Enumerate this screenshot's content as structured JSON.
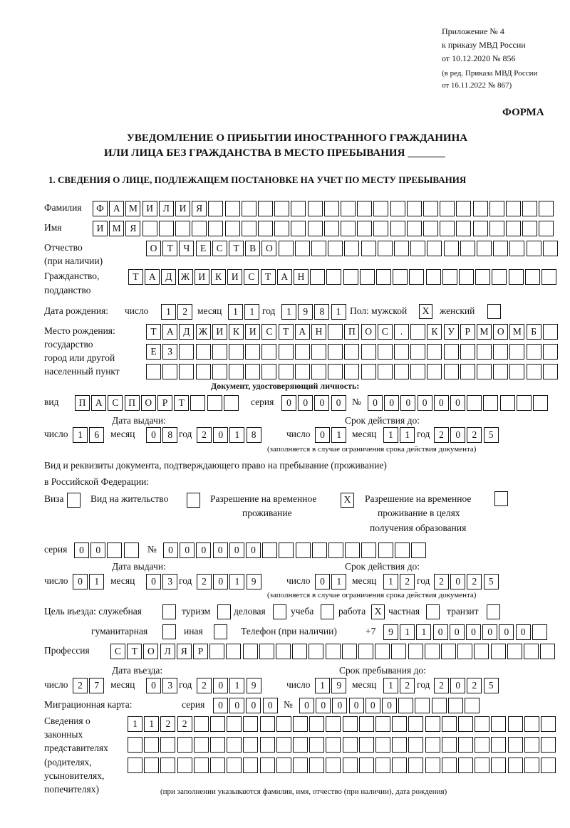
{
  "header": {
    "appendix_line1": "Приложение № 4",
    "appendix_line2": "к приказу МВД России",
    "appendix_line3": "от 10.12.2020 № 856",
    "appendix_line4": "(в ред. Приказа МВД России",
    "appendix_line5": "от 16.11.2022 № 867)",
    "form_label": "ФОРМА",
    "title_line1": "УВЕДОМЛЕНИЕ О ПРИБЫТИИ ИНОСТРАННОГО ГРАЖДАНИНА",
    "title_line2": "ИЛИ ЛИЦА БЕЗ ГРАЖДАНСТВА В МЕСТО ПРЕБЫВАНИЯ",
    "title_blank": "_______"
  },
  "section1": {
    "heading": "1. СВЕДЕНИЯ О ЛИЦЕ, ПОДЛЕЖАЩЕМ ПОСТАНОВКЕ НА УЧЕТ ПО МЕСТУ ПРЕБЫВАНИЯ",
    "surname": {
      "label": "Фамилия",
      "value": "ФАМИЛИЯ"
    },
    "name": {
      "label": "Имя",
      "value": "ИМЯ"
    },
    "patronymic": {
      "label1": "Отчество",
      "label2": "(при наличии)",
      "value": "ОТЧЕСТВО"
    },
    "citizenship": {
      "label1": "Гражданство,",
      "label2": "подданство",
      "value": "ТАДЖИКИСТАН"
    },
    "birth_date": {
      "label": "Дата рождения:",
      "day_label": "число",
      "day": "12",
      "month_label": "месяц",
      "month": "11",
      "year_label": "год",
      "year": "1981"
    },
    "sex": {
      "label_male": "Пол: мужской",
      "male": "X",
      "label_female": "женский",
      "female": ""
    },
    "birth_place": {
      "label1": "Место рождения:",
      "label2": "государство",
      "label3": "город или другой",
      "label4": "населенный пункт",
      "line1": "ТАДЖИКИСТАН ПОС. КУРМОМБ",
      "line2": "ЕЗ",
      "line3": ""
    },
    "identity_doc": {
      "heading": "Документ, удостоверяющий личность:",
      "type_label": "вид",
      "type": "ПАСПОРТ",
      "series_label": "серия",
      "series": "0000",
      "number_label": "№",
      "number": "000000",
      "issue_label": "Дата выдачи:",
      "expiry_label": "Срок действия до:",
      "day_label": "число",
      "month_label": "месяц",
      "year_label": "год",
      "issue_day": "16",
      "issue_month": "08",
      "issue_year": "2018",
      "expiry_day": "01",
      "expiry_month": "11",
      "expiry_year": "2025",
      "note": "(заполняется в случае ограничения срока действия документа)"
    },
    "stay_doc": {
      "label1": "Вид и реквизиты документа, подтверждающего право на пребывание (проживание)",
      "label2": "в Российской Федерации:",
      "visa_label": "Виза",
      "visa": "",
      "residence_label": "Вид на жительство",
      "residence": "",
      "temp_label1": "Разрешение на временное",
      "temp_label2": "проживание",
      "temp": "X",
      "edu_label1": "Разрешение на временное",
      "edu_label2": "проживание в целях",
      "edu_label3": "получения образования",
      "edu": "",
      "series_label": "серия",
      "series": "00",
      "number_label": "№",
      "number": "000000",
      "issue_label": "Дата выдачи:",
      "expiry_label": "Срок действия до:",
      "day_label": "число",
      "month_label": "месяц",
      "year_label": "год",
      "issue_day": "01",
      "issue_month": "03",
      "issue_year": "2019",
      "expiry_day": "01",
      "expiry_month": "12",
      "expiry_year": "2025",
      "note": "(заполняется в случае ограничения срока действия документа)"
    },
    "purpose": {
      "label": "Цель въезда: служебная",
      "official": "",
      "tourism_label": "туризм",
      "tourism": "",
      "business_label": "деловая",
      "business": "",
      "study_label": "учеба",
      "study": "",
      "work_label": "работа",
      "work": "X",
      "private_label": "частная",
      "private": "",
      "transit_label": "транзит",
      "transit": "",
      "humanitarian_label": "гуманитарная",
      "humanitarian": "",
      "other_label": "иная",
      "other": ""
    },
    "phone": {
      "label": "Телефон (при наличии)",
      "prefix": "+7",
      "value": "911000000"
    },
    "profession": {
      "label": "Профессия",
      "value": "СТОЛЯР"
    },
    "entry": {
      "entry_label": "Дата въезда:",
      "stay_until_label": "Срок пребывания до:",
      "day_label": "число",
      "month_label": "месяц",
      "year_label": "год",
      "entry_day": "27",
      "entry_month": "03",
      "entry_year": "2019",
      "until_day": "19",
      "until_month": "12",
      "until_year": "2025"
    },
    "migration_card": {
      "label": "Миграционная карта:",
      "series_label": "серия",
      "series": "0000",
      "number_label": "№",
      "number": "000000"
    },
    "representatives": {
      "label1": "Сведения о",
      "label2": "законных",
      "label3": "представителях",
      "label4": "(родителях,",
      "label5": "усыновителях,",
      "label6": "попечителях)",
      "line1": "1122",
      "line2": "",
      "line3": "",
      "note": "(при заполнении указываются фамилия, имя, отчество (при наличии), дата рождения)"
    }
  }
}
